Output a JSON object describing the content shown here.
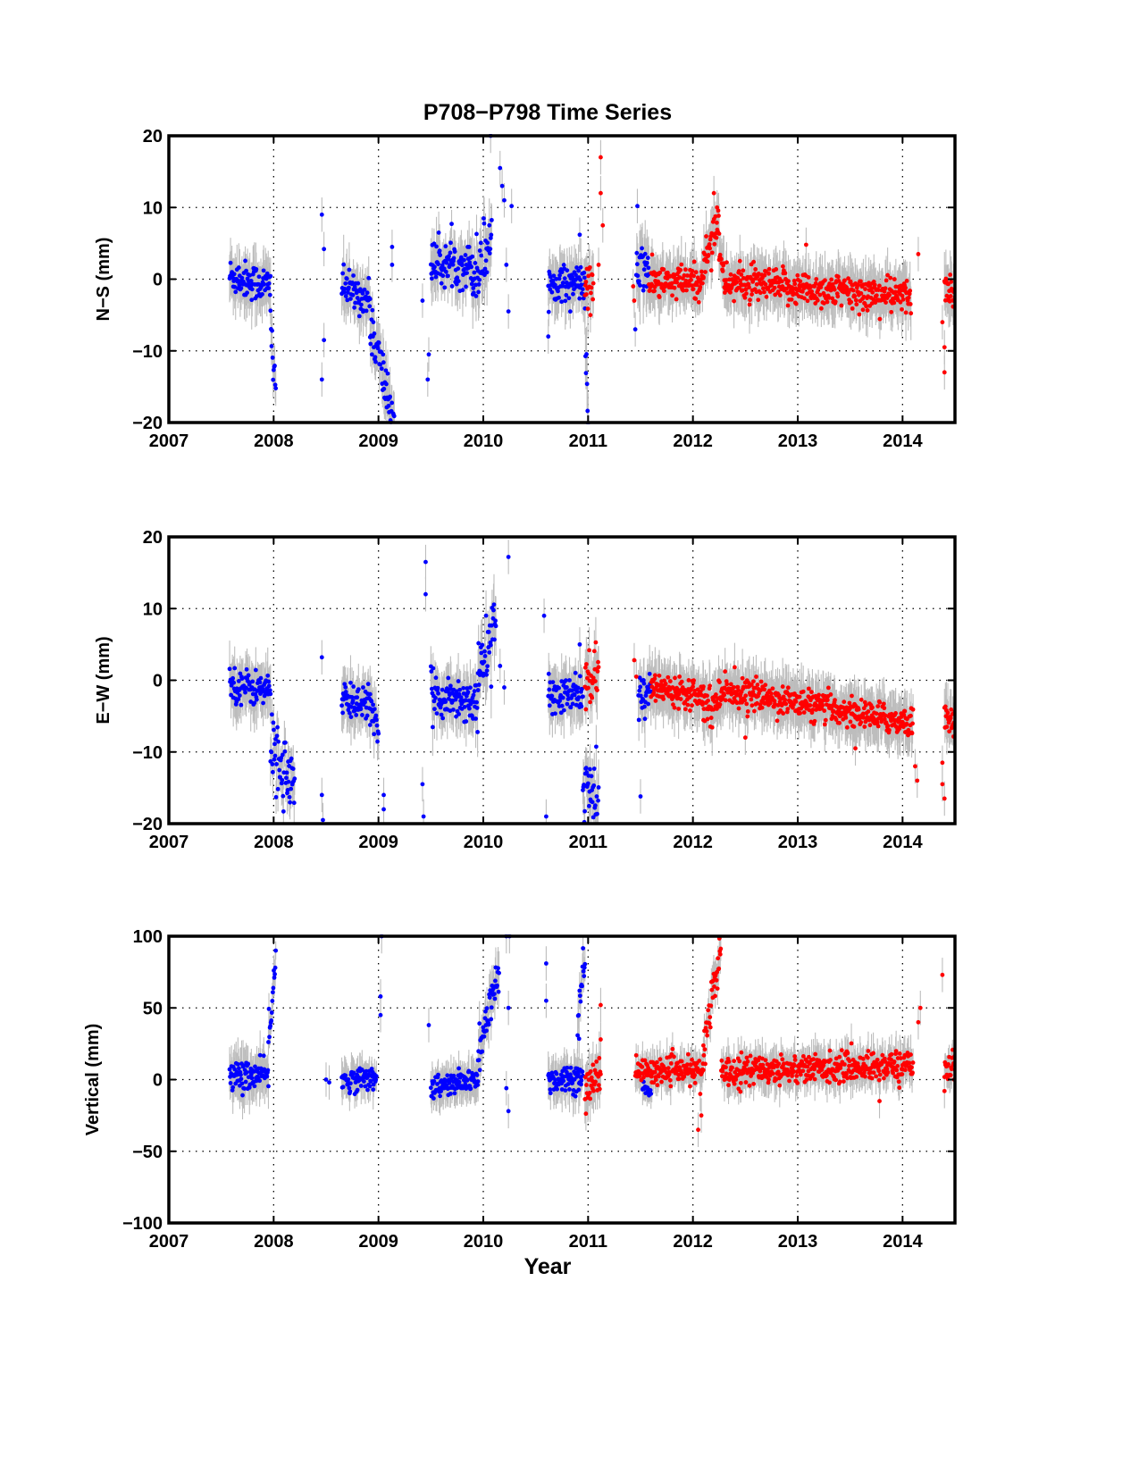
{
  "figure": {
    "title": "P708−P798 Time Series",
    "xlabel": "Year"
  },
  "colors": {
    "series_a": "#0000ff",
    "series_b": "#ff0000",
    "errorbar": "#bdbdbd",
    "frame": "#000000"
  },
  "chart_data": [
    {
      "type": "scatter",
      "title": "P708−P798 Time Series",
      "xlabel": "",
      "ylabel": "N−S (mm)",
      "xlim": [
        2007,
        2014.5
      ],
      "ylim": [
        -20,
        20
      ],
      "xticks": [
        2007,
        2008,
        2009,
        2010,
        2011,
        2012,
        2013,
        2014
      ],
      "yticks": [
        20,
        10,
        0,
        -10,
        -20
      ],
      "grid": true,
      "errorbars": true,
      "series": [
        {
          "color": "blue",
          "segments": [
            {
              "x0": 2007.58,
              "x1": 2007.97,
              "y0": 0.5,
              "y1": -1.0,
              "noise": 1.3,
              "err": 3.0
            },
            {
              "x0": 2007.97,
              "x1": 2008.02,
              "y0": -6.0,
              "y1": -15.0,
              "noise": 2.0,
              "err": 2.5
            },
            {
              "x0": 2008.65,
              "x1": 2008.92,
              "y0": -1.0,
              "y1": -3.0,
              "noise": 1.2,
              "err": 3.0
            },
            {
              "x0": 2008.92,
              "x1": 2009.15,
              "y0": -6.0,
              "y1": -20.0,
              "noise": 2.0,
              "err": 3.0
            },
            {
              "x0": 2009.5,
              "x1": 2009.9,
              "y0": 2.0,
              "y1": 2.0,
              "noise": 1.5,
              "err": 3.0
            },
            {
              "x0": 2009.9,
              "x1": 2010.08,
              "y0": 0.0,
              "y1": 6.0,
              "noise": 2.5,
              "err": 3.5
            },
            {
              "x0": 2010.62,
              "x1": 2010.97,
              "y0": -0.5,
              "y1": -0.5,
              "noise": 1.2,
              "err": 3.0
            },
            {
              "x0": 2010.97,
              "x1": 2011.0,
              "y0": -8.0,
              "y1": -20.0,
              "noise": 2.0,
              "err": 3.0
            },
            {
              "x0": 2011.46,
              "x1": 2011.58,
              "y0": 1.0,
              "y1": 1.5,
              "noise": 1.8,
              "err": 4.0
            }
          ],
          "points": [
            [
              2008.46,
              9.0
            ],
            [
              2008.48,
              4.2
            ],
            [
              2008.48,
              -8.5
            ],
            [
              2008.46,
              -14.0
            ],
            [
              2009.13,
              4.5
            ],
            [
              2009.13,
              2.0
            ],
            [
              2009.42,
              -3.0
            ],
            [
              2009.48,
              -10.5
            ],
            [
              2009.47,
              -14.0
            ],
            [
              2010.07,
              20.0
            ],
            [
              2010.16,
              15.5
            ],
            [
              2010.18,
              13.0
            ],
            [
              2010.2,
              11.0
            ],
            [
              2010.27,
              10.2
            ],
            [
              2010.22,
              2.0
            ],
            [
              2010.24,
              -4.5
            ],
            [
              2010.62,
              -8.0
            ],
            [
              2010.92,
              6.2
            ],
            [
              2011.47,
              10.2
            ],
            [
              2011.45,
              -7.0
            ]
          ]
        },
        {
          "color": "red",
          "segments": [
            {
              "x0": 2010.97,
              "x1": 2011.05,
              "y0": -1.0,
              "y1": -1.5,
              "noise": 1.8,
              "err": 3.0
            },
            {
              "x0": 2011.58,
              "x1": 2012.1,
              "y0": -0.5,
              "y1": -0.5,
              "noise": 1.2,
              "err": 3.0
            },
            {
              "x0": 2012.1,
              "x1": 2012.25,
              "y0": 2.0,
              "y1": 9.0,
              "noise": 1.5,
              "err": 3.0
            },
            {
              "x0": 2012.25,
              "x1": 2012.3,
              "y0": 3.0,
              "y1": 0.0,
              "noise": 1.0,
              "err": 3.0
            },
            {
              "x0": 2012.3,
              "x1": 2014.08,
              "y0": -0.5,
              "y1": -2.5,
              "noise": 1.2,
              "err": 3.0
            },
            {
              "x0": 2014.4,
              "x1": 2014.5,
              "y0": -1.5,
              "y1": -1.5,
              "noise": 1.2,
              "err": 3.0
            }
          ],
          "points": [
            [
              2011.12,
              17.0
            ],
            [
              2011.12,
              12.0
            ],
            [
              2011.14,
              7.5
            ],
            [
              2011.1,
              2.0
            ],
            [
              2012.2,
              12.0
            ],
            [
              2012.23,
              10.0
            ],
            [
              2013.08,
              4.8
            ],
            [
              2014.15,
              3.5
            ],
            [
              2014.38,
              -6.0
            ],
            [
              2014.4,
              -9.5
            ],
            [
              2014.4,
              -13.0
            ],
            [
              2011.44,
              -3.0
            ],
            [
              2011.43,
              -1.0
            ]
          ]
        }
      ]
    },
    {
      "type": "scatter",
      "title": "",
      "xlabel": "",
      "ylabel": "E−W (mm)",
      "xlim": [
        2007,
        2014.5
      ],
      "ylim": [
        -20,
        20
      ],
      "xticks": [
        2007,
        2008,
        2009,
        2010,
        2011,
        2012,
        2013,
        2014
      ],
      "yticks": [
        20,
        10,
        0,
        -10,
        -20
      ],
      "grid": true,
      "errorbars": true,
      "series": [
        {
          "color": "blue",
          "segments": [
            {
              "x0": 2007.58,
              "x1": 2007.97,
              "y0": -0.5,
              "y1": -1.5,
              "noise": 1.2,
              "err": 3.0
            },
            {
              "x0": 2007.97,
              "x1": 2008.2,
              "y0": -9.0,
              "y1": -15.0,
              "noise": 2.5,
              "err": 2.5
            },
            {
              "x0": 2008.65,
              "x1": 2008.92,
              "y0": -3.0,
              "y1": -3.0,
              "noise": 1.2,
              "err": 3.0
            },
            {
              "x0": 2008.92,
              "x1": 2009.0,
              "y0": -5.0,
              "y1": -7.0,
              "noise": 1.5,
              "err": 3.0
            },
            {
              "x0": 2009.5,
              "x1": 2009.95,
              "y0": -2.0,
              "y1": -3.0,
              "noise": 1.5,
              "err": 3.0
            },
            {
              "x0": 2009.95,
              "x1": 2010.12,
              "y0": 0.0,
              "y1": 9.0,
              "noise": 2.0,
              "err": 3.5
            },
            {
              "x0": 2010.62,
              "x1": 2010.95,
              "y0": -2.5,
              "y1": -2.0,
              "noise": 1.3,
              "err": 3.0
            },
            {
              "x0": 2010.95,
              "x1": 2011.1,
              "y0": -14.0,
              "y1": -18.0,
              "noise": 2.5,
              "err": 3.0
            },
            {
              "x0": 2011.48,
              "x1": 2011.6,
              "y0": -2.0,
              "y1": -1.0,
              "noise": 1.5,
              "err": 3.0
            }
          ],
          "points": [
            [
              2008.46,
              3.2
            ],
            [
              2008.46,
              -16.0
            ],
            [
              2008.47,
              -19.5
            ],
            [
              2009.05,
              -16.0
            ],
            [
              2009.05,
              -18.0
            ],
            [
              2009.45,
              16.5
            ],
            [
              2009.45,
              12.0
            ],
            [
              2009.42,
              -14.5
            ],
            [
              2009.43,
              -19.0
            ],
            [
              2010.24,
              17.2
            ],
            [
              2010.16,
              2.0
            ],
            [
              2010.2,
              -1.0
            ],
            [
              2010.58,
              9.0
            ],
            [
              2010.6,
              -19.0
            ],
            [
              2010.92,
              5.0
            ],
            [
              2011.5,
              -16.2
            ]
          ]
        },
        {
          "color": "red",
          "segments": [
            {
              "x0": 2010.97,
              "x1": 2011.1,
              "y0": 0.0,
              "y1": 0.5,
              "noise": 1.8,
              "err": 3.0
            },
            {
              "x0": 2011.6,
              "x1": 2012.1,
              "y0": -1.0,
              "y1": -1.8,
              "noise": 1.0,
              "err": 3.0
            },
            {
              "x0": 2012.1,
              "x1": 2012.25,
              "y0": -3.5,
              "y1": -3.0,
              "noise": 1.5,
              "err": 3.0
            },
            {
              "x0": 2012.25,
              "x1": 2014.1,
              "y0": -1.2,
              "y1": -6.0,
              "noise": 1.0,
              "err": 3.0
            },
            {
              "x0": 2014.4,
              "x1": 2014.5,
              "y0": -5.0,
              "y1": -5.5,
              "noise": 1.2,
              "err": 3.0
            }
          ],
          "points": [
            [
              2011.44,
              2.8
            ],
            [
              2011.46,
              0.5
            ],
            [
              2012.5,
              -8.0
            ],
            [
              2013.55,
              -9.5
            ],
            [
              2014.12,
              -12.0
            ],
            [
              2014.14,
              -14.0
            ],
            [
              2014.38,
              -11.5
            ],
            [
              2014.38,
              -14.5
            ],
            [
              2014.4,
              -16.5
            ]
          ]
        }
      ]
    },
    {
      "type": "scatter",
      "title": "",
      "xlabel": "Year",
      "ylabel": "Vertical (mm)",
      "xlim": [
        2007,
        2014.5
      ],
      "ylim": [
        -100,
        100
      ],
      "xticks": [
        2007,
        2008,
        2009,
        2010,
        2011,
        2012,
        2013,
        2014
      ],
      "yticks": [
        100,
        50,
        0,
        -50,
        -100
      ],
      "grid": true,
      "errorbars": true,
      "series": [
        {
          "color": "blue",
          "segments": [
            {
              "x0": 2007.58,
              "x1": 2007.95,
              "y0": 2.0,
              "y1": 3.0,
              "noise": 5.0,
              "err": 14.0
            },
            {
              "x0": 2007.95,
              "x1": 2008.02,
              "y0": 25.0,
              "y1": 88.0,
              "noise": 8.0,
              "err": 10.0
            },
            {
              "x0": 2008.65,
              "x1": 2008.98,
              "y0": -1.0,
              "y1": 2.0,
              "noise": 4.0,
              "err": 10.0
            },
            {
              "x0": 2009.5,
              "x1": 2009.95,
              "y0": -6.0,
              "y1": 0.0,
              "noise": 4.0,
              "err": 11.0
            },
            {
              "x0": 2009.95,
              "x1": 2010.15,
              "y0": 15.0,
              "y1": 75.0,
              "noise": 8.0,
              "err": 12.0
            },
            {
              "x0": 2010.62,
              "x1": 2010.95,
              "y0": 0.0,
              "y1": 2.0,
              "noise": 5.0,
              "err": 12.0
            },
            {
              "x0": 2010.9,
              "x1": 2010.97,
              "y0": 30.0,
              "y1": 90.0,
              "noise": 10.0,
              "err": 12.0
            },
            {
              "x0": 2011.52,
              "x1": 2011.6,
              "y0": -8.0,
              "y1": -10.0,
              "noise": 4.0,
              "err": 8.0
            }
          ],
          "points": [
            [
              2008.5,
              0.0
            ],
            [
              2008.53,
              -2.0
            ],
            [
              2009.02,
              58.0
            ],
            [
              2009.02,
              45.0
            ],
            [
              2009.03,
              100.0
            ],
            [
              2009.48,
              38.0
            ],
            [
              2010.22,
              100.0
            ],
            [
              2010.25,
              100.0
            ],
            [
              2010.24,
              50.0
            ],
            [
              2010.22,
              -6.0
            ],
            [
              2010.24,
              -22.0
            ],
            [
              2010.6,
              81.0
            ],
            [
              2010.6,
              55.0
            ]
          ]
        },
        {
          "color": "red",
          "segments": [
            {
              "x0": 2010.97,
              "x1": 2011.12,
              "y0": -5.0,
              "y1": 5.0,
              "noise": 8.0,
              "err": 14.0
            },
            {
              "x0": 2011.45,
              "x1": 2012.1,
              "y0": 6.0,
              "y1": 6.0,
              "noise": 4.0,
              "err": 10.0
            },
            {
              "x0": 2012.1,
              "x1": 2012.27,
              "y0": 20.0,
              "y1": 95.0,
              "noise": 8.0,
              "err": 10.0
            },
            {
              "x0": 2012.27,
              "x1": 2014.1,
              "y0": 6.0,
              "y1": 10.0,
              "noise": 5.0,
              "err": 11.0
            },
            {
              "x0": 2014.4,
              "x1": 2014.5,
              "y0": 10.0,
              "y1": 10.0,
              "noise": 5.0,
              "err": 10.0
            }
          ],
          "points": [
            [
              2011.12,
              52.0
            ],
            [
              2011.12,
              28.0
            ],
            [
              2012.05,
              -35.0
            ],
            [
              2012.08,
              -25.0
            ],
            [
              2012.07,
              -10.0
            ],
            [
              2014.38,
              73.0
            ],
            [
              2014.17,
              50.0
            ],
            [
              2014.15,
              40.0
            ],
            [
              2014.4,
              -8.0
            ],
            [
              2013.78,
              -15.0
            ]
          ]
        }
      ]
    }
  ]
}
